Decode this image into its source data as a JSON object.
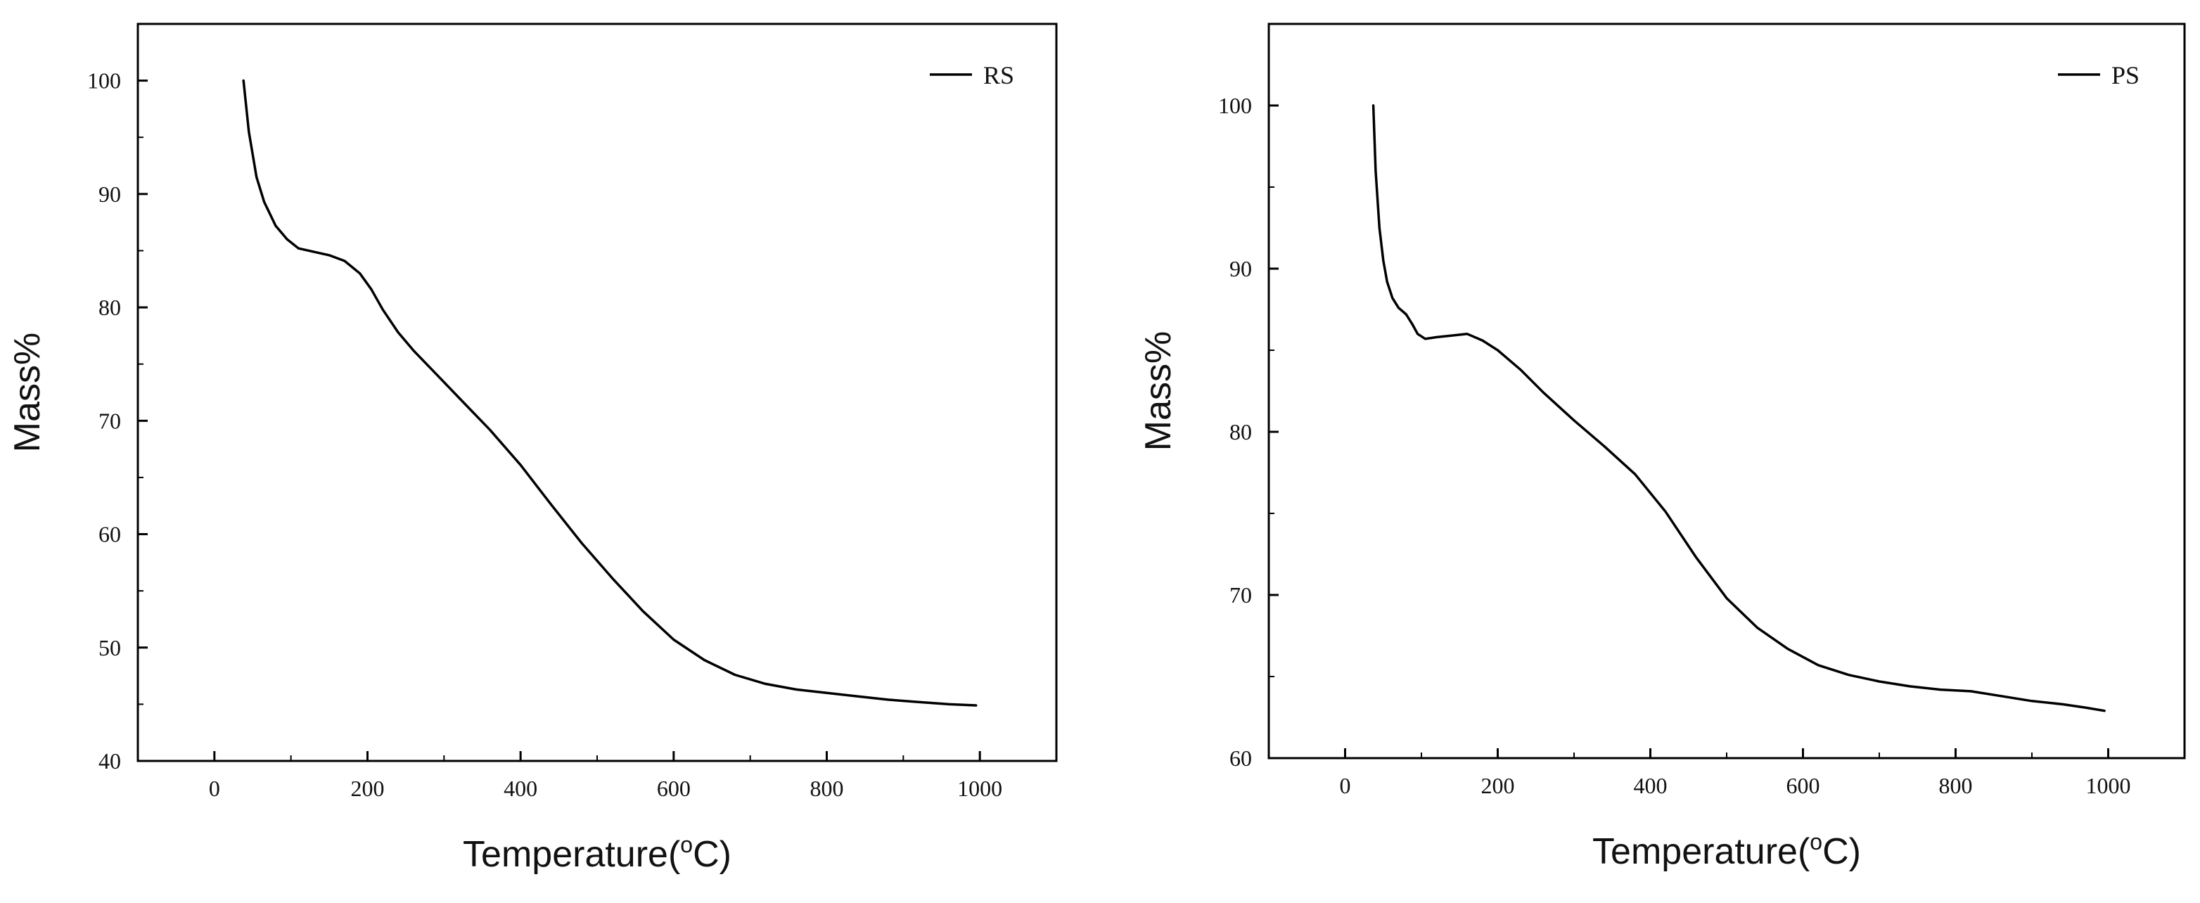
{
  "chart_data": [
    {
      "type": "line",
      "title": "",
      "xlabel": "Temperature(°C)",
      "xlabel_parts": [
        "Temperature(",
        "o",
        "C)"
      ],
      "ylabel": "Mass%",
      "xlim": [
        -100,
        1100
      ],
      "ylim": [
        40,
        105
      ],
      "xticks": [
        0,
        200,
        400,
        600,
        800,
        1000
      ],
      "yticks": [
        40,
        50,
        60,
        70,
        80,
        90,
        100
      ],
      "grid": false,
      "legend_position": "top-right",
      "series": [
        {
          "name": "RS",
          "color": "#000000",
          "x": [
            38,
            45,
            55,
            65,
            80,
            95,
            110,
            130,
            150,
            170,
            190,
            205,
            220,
            240,
            260,
            290,
            320,
            360,
            400,
            440,
            480,
            520,
            560,
            600,
            640,
            680,
            720,
            760,
            800,
            840,
            880,
            920,
            960,
            995
          ],
          "y": [
            100,
            95.5,
            91.5,
            89.3,
            87.2,
            86.0,
            85.2,
            84.9,
            84.6,
            84.1,
            83.0,
            81.6,
            79.8,
            77.8,
            76.2,
            74.1,
            72.0,
            69.2,
            66.1,
            62.6,
            59.2,
            56.1,
            53.2,
            50.7,
            48.9,
            47.6,
            46.8,
            46.3,
            46.0,
            45.7,
            45.4,
            45.2,
            45.0,
            44.9
          ]
        }
      ]
    },
    {
      "type": "line",
      "title": "",
      "xlabel": "Temperature(°C)",
      "xlabel_parts": [
        "Temperature(",
        "o",
        "C)"
      ],
      "ylabel": "Mass%",
      "xlim": [
        -100,
        1100
      ],
      "ylim": [
        60,
        105
      ],
      "xticks": [
        0,
        200,
        400,
        600,
        800,
        1000
      ],
      "yticks": [
        60,
        70,
        80,
        90,
        100
      ],
      "grid": false,
      "legend_position": "top-right",
      "series": [
        {
          "name": "PS",
          "color": "#000000",
          "x": [
            37,
            40,
            45,
            50,
            55,
            62,
            70,
            80,
            88,
            95,
            105,
            120,
            140,
            160,
            180,
            200,
            230,
            260,
            300,
            340,
            380,
            420,
            460,
            500,
            540,
            580,
            620,
            660,
            700,
            740,
            780,
            820,
            860,
            900,
            940,
            970,
            995
          ],
          "y": [
            100,
            96.0,
            92.5,
            90.5,
            89.2,
            88.2,
            87.6,
            87.2,
            86.6,
            86.0,
            85.7,
            85.8,
            85.9,
            86.0,
            85.6,
            85.0,
            83.8,
            82.4,
            80.7,
            79.1,
            77.4,
            75.1,
            72.3,
            69.8,
            68.0,
            66.7,
            65.7,
            65.1,
            64.7,
            64.4,
            64.2,
            64.1,
            63.8,
            63.5,
            63.3,
            63.1,
            62.9
          ]
        }
      ]
    }
  ]
}
